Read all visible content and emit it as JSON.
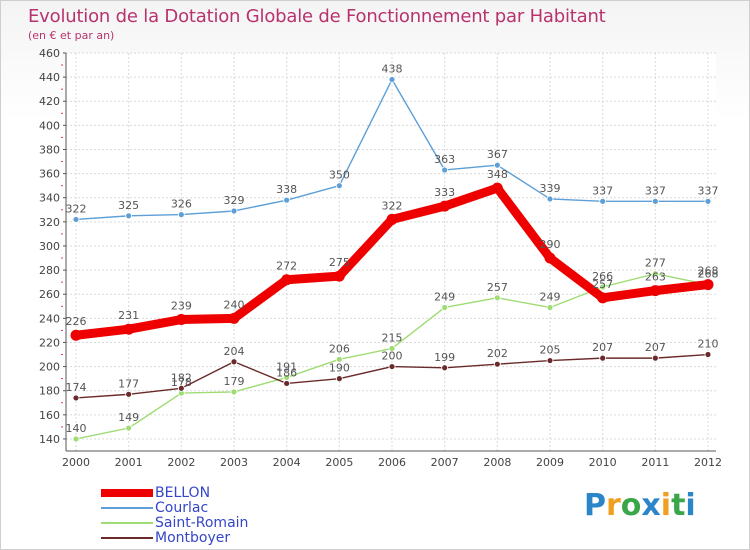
{
  "title": "Evolution de la Dotation Globale de Fonctionnement par Habitant",
  "subtitle": "(en € et par an)",
  "brand": {
    "logo_text": "Proxiti",
    "colors": [
      "#2a86c9",
      "#f0a020",
      "#3aa64a",
      "#2a86c9",
      "#f0a020",
      "#3aa64a",
      "#2a86c9"
    ]
  },
  "chart_data": {
    "type": "line",
    "title": "Evolution de la Dotation Globale de Fonctionnement par Habitant",
    "ylabel": "(en € et par an)",
    "xlabel": "",
    "ylim": [
      130,
      460
    ],
    "yticks": [
      140,
      160,
      180,
      200,
      220,
      240,
      260,
      280,
      300,
      320,
      340,
      360,
      380,
      400,
      420,
      440,
      460
    ],
    "grid": true,
    "x": [
      "2000",
      "2001",
      "2002",
      "2003",
      "2004",
      "2005",
      "2006",
      "2007",
      "2008",
      "2009",
      "2010",
      "2011",
      "2012"
    ],
    "series": [
      {
        "name": "Courlac",
        "color": "#5d9fd6",
        "thick": false,
        "values": [
          322,
          325,
          326,
          329,
          338,
          350,
          438,
          363,
          367,
          339,
          337,
          337,
          337
        ]
      },
      {
        "name": "Saint-Romain",
        "color": "#9fdc74",
        "thick": false,
        "values": [
          140,
          149,
          178,
          179,
          191,
          206,
          215,
          249,
          257,
          249,
          266,
          277,
          268
        ]
      },
      {
        "name": "Montboyer",
        "color": "#6a2a2a",
        "thick": false,
        "values": [
          174,
          177,
          182,
          204,
          186,
          190,
          200,
          199,
          202,
          205,
          207,
          207,
          210
        ]
      },
      {
        "name": "BELLON",
        "color": "#ee0000",
        "thick": true,
        "values": [
          226,
          231,
          239,
          240,
          272,
          275,
          322,
          333,
          348,
          290,
          257,
          263,
          268
        ]
      }
    ],
    "legend_position": "bottom-left",
    "legend": [
      {
        "name": "BELLON",
        "color": "#ee0000"
      },
      {
        "name": "Courlac",
        "color": "#5d9fd6"
      },
      {
        "name": "Saint-Romain",
        "color": "#9fdc74"
      },
      {
        "name": "Montboyer",
        "color": "#6a2a2a"
      }
    ]
  }
}
